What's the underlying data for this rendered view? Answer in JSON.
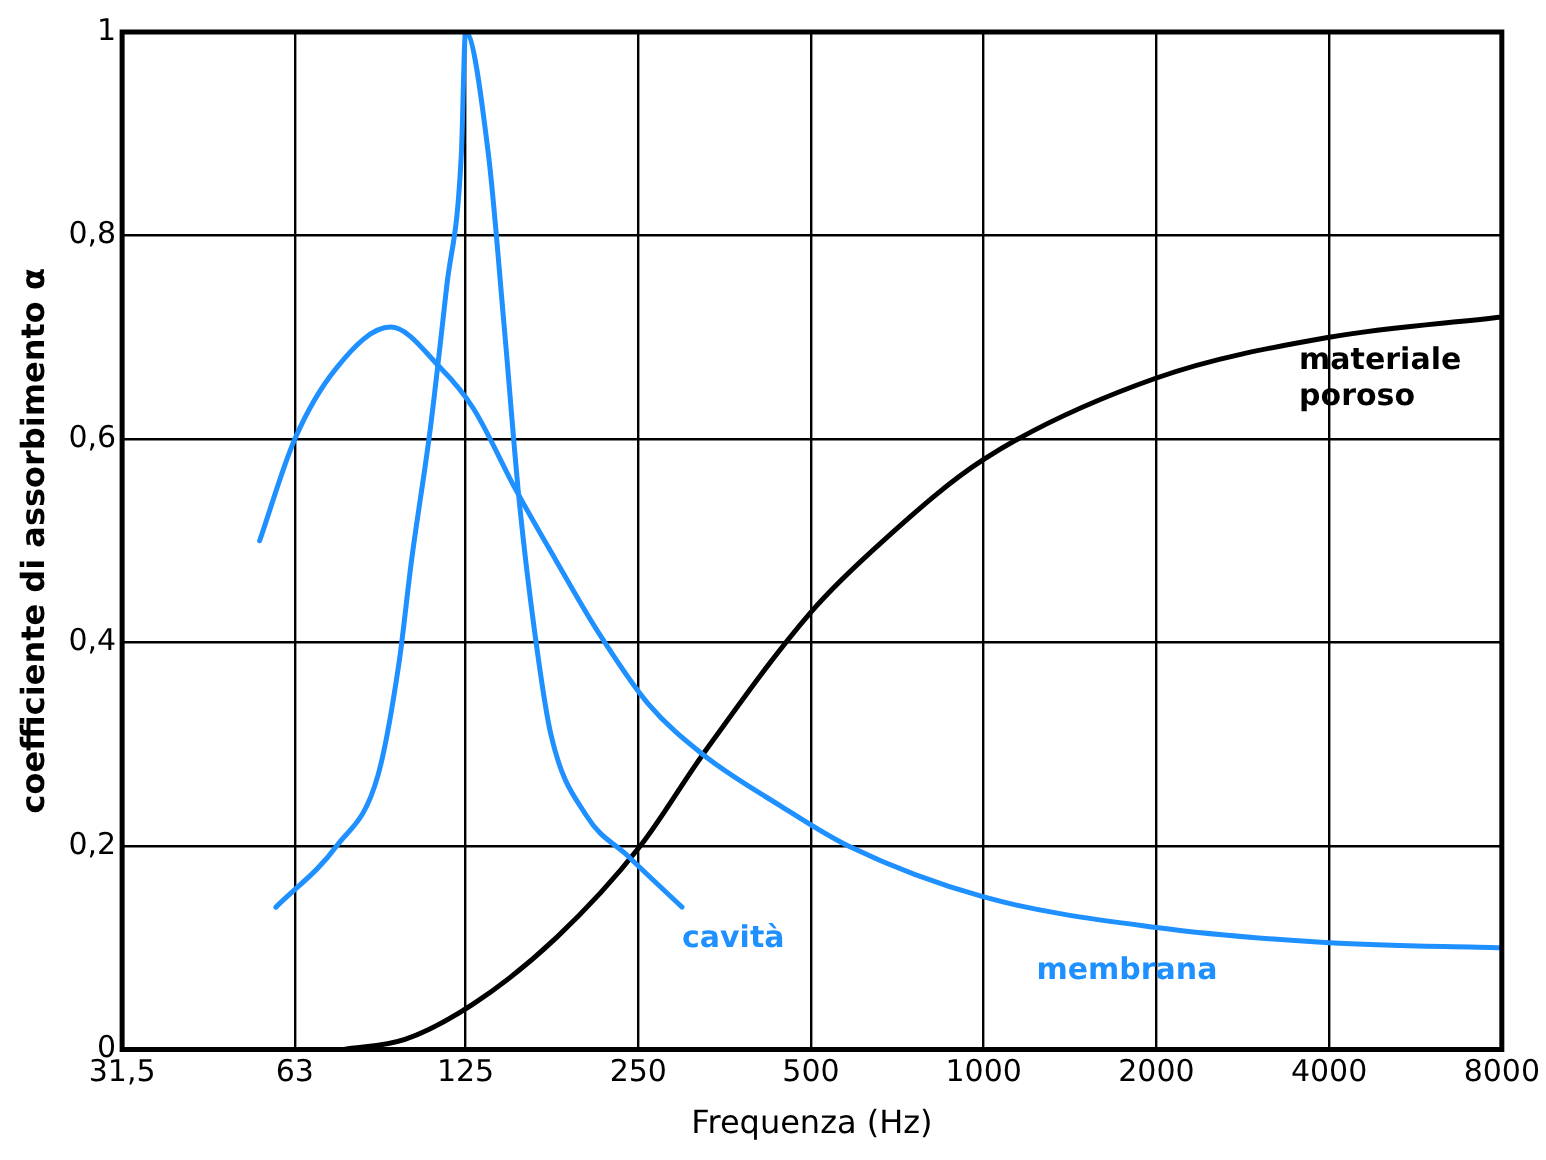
{
  "chart_data": {
    "type": "line",
    "xlabel": "Frequenza (Hz)",
    "ylabel": "coefficiente di assorbimento α",
    "log": "x",
    "xlim": [
      31.5,
      8000
    ],
    "xticks": [
      {
        "value": 31.5,
        "label": "31,5"
      },
      63,
      125,
      250,
      500,
      1000,
      2000,
      4000,
      8000
    ],
    "ylim": [
      0,
      1
    ],
    "yticks": [
      0,
      {
        "value": 0.2,
        "label": "0,2"
      },
      {
        "value": 0.4,
        "label": "0,4"
      },
      {
        "value": 0.6,
        "label": "0,6"
      },
      {
        "value": 0.8,
        "label": "0,8"
      },
      1
    ],
    "grid": true,
    "legend": false,
    "marker": "none",
    "line_style": "solid",
    "series": [
      {
        "name": "cavità",
        "color": "#1e90ff",
        "x": [
          58.4,
          74.5,
          88,
          95.7,
          100.6,
          108.5,
          115.9,
          122.9,
          125,
          137,
          146,
          155,
          165,
          176,
          203,
          240,
          298
        ],
        "values": [
          0.14,
          0.2,
          0.27,
          0.38,
          0.48,
          0.61,
          0.75,
          0.88,
          1,
          0.88,
          0.71,
          0.54,
          0.41,
          0.31,
          0.23,
          0.19,
          0.14
        ]
      },
      {
        "name": "membrana",
        "color": "#1e90ff",
        "x": [
          54.7,
          63,
          74.5,
          92.5,
          113,
          129,
          153,
          180,
          213,
          260,
          324,
          441,
          581,
          1000,
          2000,
          4000,
          8000
        ],
        "values": [
          0.5,
          0.6,
          0.67,
          0.71,
          0.67,
          0.63,
          0.55,
          0.48,
          0.41,
          0.34,
          0.29,
          0.24,
          0.2,
          0.15,
          0.12,
          0.105,
          0.1
        ]
      },
      {
        "name": "materiale poroso",
        "color": "#000000",
        "x": [
          76.4,
          98,
          129,
          180,
          252,
          324,
          500,
          668,
          1000,
          2000,
          4000,
          8000
        ],
        "values": [
          0,
          0.01,
          0.045,
          0.11,
          0.2,
          0.29,
          0.43,
          0.5,
          0.58,
          0.66,
          0.7,
          0.72
        ]
      }
    ]
  }
}
